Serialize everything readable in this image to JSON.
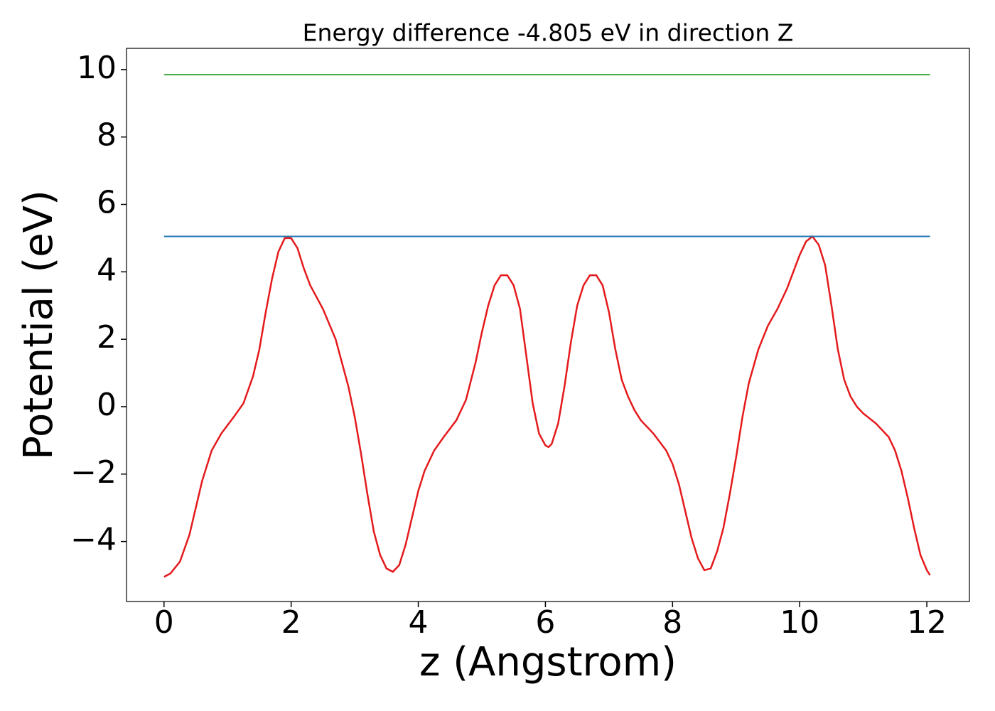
{
  "chart_data": {
    "type": "line",
    "title": "Energy difference -4.805 eV in direction Z",
    "x_label": "z (Angstrom)",
    "y_label": "Potential (eV)",
    "xlim": [
      -0.59,
      12.67
    ],
    "ylim": [
      -5.78,
      10.63
    ],
    "xticks": [
      0,
      2,
      4,
      6,
      8,
      10,
      12
    ],
    "yticks": [
      {
        "value": -4,
        "label": "−4"
      },
      {
        "value": -2,
        "label": "−2"
      },
      0,
      2,
      4,
      6,
      8,
      10
    ],
    "series": [
      {
        "color": "#e41a1c",
        "x": [
          0,
          0.1,
          0.25,
          0.4,
          0.5,
          0.6,
          0.75,
          0.9,
          1.0,
          1.1,
          1.25,
          1.4,
          1.5,
          1.6,
          1.7,
          1.8,
          1.9,
          2.0,
          2.1,
          2.2,
          2.3,
          2.5,
          2.7,
          2.9,
          3.0,
          3.1,
          3.2,
          3.3,
          3.4,
          3.5,
          3.6,
          3.7,
          3.8,
          3.9,
          4.0,
          4.1,
          4.25,
          4.4,
          4.6,
          4.75,
          4.9,
          5.0,
          5.1,
          5.2,
          5.3,
          5.4,
          5.5,
          5.6,
          5.7,
          5.8,
          5.9,
          6.0,
          6.05,
          6.1,
          6.2,
          6.3,
          6.4,
          6.5,
          6.6,
          6.7,
          6.8,
          6.9,
          7.0,
          7.1,
          7.2,
          7.3,
          7.4,
          7.5,
          7.7,
          7.9,
          8.0,
          8.1,
          8.2,
          8.3,
          8.4,
          8.5,
          8.6,
          8.7,
          8.8,
          8.9,
          9.0,
          9.1,
          9.2,
          9.35,
          9.5,
          9.65,
          9.8,
          9.9,
          10.0,
          10.1,
          10.2,
          10.3,
          10.4,
          10.5,
          10.6,
          10.7,
          10.8,
          10.9,
          11.0,
          11.2,
          11.4,
          11.5,
          11.6,
          11.7,
          11.8,
          11.9,
          12.0,
          12.05
        ],
        "values": [
          -5.05,
          -4.95,
          -4.6,
          -3.8,
          -3.0,
          -2.2,
          -1.3,
          -0.8,
          -0.55,
          -0.3,
          0.1,
          0.9,
          1.7,
          2.8,
          3.8,
          4.6,
          5.0,
          5.0,
          4.7,
          4.1,
          3.6,
          2.9,
          2.0,
          0.6,
          -0.3,
          -1.4,
          -2.6,
          -3.7,
          -4.4,
          -4.8,
          -4.9,
          -4.7,
          -4.1,
          -3.3,
          -2.5,
          -1.9,
          -1.3,
          -0.9,
          -0.4,
          0.2,
          1.3,
          2.2,
          3.0,
          3.6,
          3.9,
          3.9,
          3.6,
          2.9,
          1.5,
          0.1,
          -0.8,
          -1.15,
          -1.2,
          -1.1,
          -0.5,
          0.6,
          1.9,
          3.0,
          3.6,
          3.9,
          3.9,
          3.6,
          2.8,
          1.7,
          0.8,
          0.3,
          -0.1,
          -0.4,
          -0.8,
          -1.3,
          -1.7,
          -2.3,
          -3.1,
          -3.9,
          -4.5,
          -4.85,
          -4.8,
          -4.3,
          -3.6,
          -2.6,
          -1.5,
          -0.3,
          0.7,
          1.7,
          2.4,
          2.9,
          3.5,
          4.0,
          4.5,
          4.9,
          5.05,
          4.8,
          4.2,
          3.0,
          1.7,
          0.8,
          0.3,
          0.0,
          -0.2,
          -0.5,
          -0.9,
          -1.3,
          -1.9,
          -2.7,
          -3.6,
          -4.4,
          -4.85,
          -5.0
        ]
      },
      {
        "color": "#1f77b4",
        "x": [
          0,
          12.05
        ],
        "values": [
          5.05,
          5.05
        ]
      },
      {
        "color": "#4daf4a",
        "x": [
          0,
          12.05
        ],
        "values": [
          9.85,
          9.85
        ]
      }
    ]
  }
}
